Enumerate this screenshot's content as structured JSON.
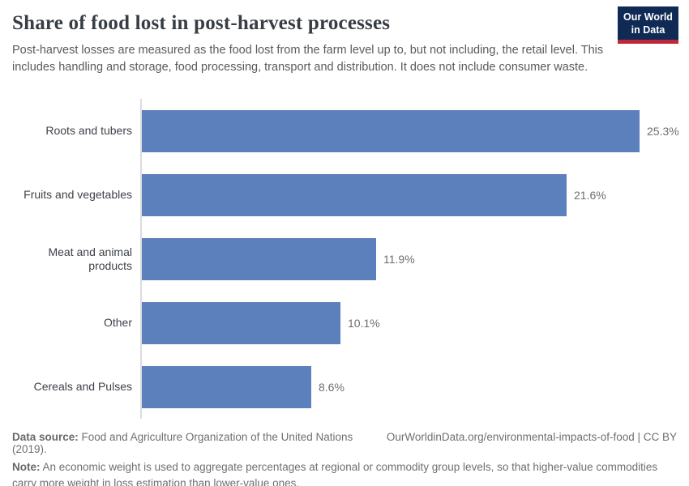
{
  "header": {
    "title": "Share of food lost in post-harvest processes",
    "subtitle": "Post-harvest losses are measured as the food lost from the farm level up to, but not including, the retail level. This includes handling and storage, food processing, transport and distribution. It does not include consumer waste.",
    "logo": {
      "line1": "Our World",
      "line2": "in Data"
    }
  },
  "chart_data": {
    "type": "bar",
    "orientation": "horizontal",
    "title": "Share of food lost in post-harvest processes",
    "categories": [
      "Roots and tubers",
      "Fruits and vegetables",
      "Meat and animal products",
      "Other",
      "Cereals and Pulses"
    ],
    "values": [
      25.3,
      21.6,
      11.9,
      10.1,
      8.6
    ],
    "value_labels": [
      "25.3%",
      "21.6%",
      "11.9%",
      "10.1%",
      "8.6%"
    ],
    "xlabel": "",
    "ylabel": "",
    "xlim": [
      0,
      26
    ],
    "grid": false,
    "legend": "none",
    "bar_color": "#5b80bc",
    "axis_color": "#dcdcdc"
  },
  "footer": {
    "source_label": "Data source:",
    "source_text": " Food and Agriculture Organization of the United Nations (2019).",
    "link_text": "OurWorldinData.org/environmental-impacts-of-food | CC BY",
    "note_label": "Note:",
    "note_text": " An economic weight is used to aggregate percentages at regional or commodity group levels, so that higher-value commodities carry more weight in loss estimation than lower-value ones."
  },
  "colors": {
    "bar": "#5b80bc",
    "logo_navy": "#0f2a54",
    "logo_red": "#c1273b",
    "title_text": "#373d44",
    "body_text": "#5a5a5a",
    "footer_text": "#6f6f6f"
  }
}
